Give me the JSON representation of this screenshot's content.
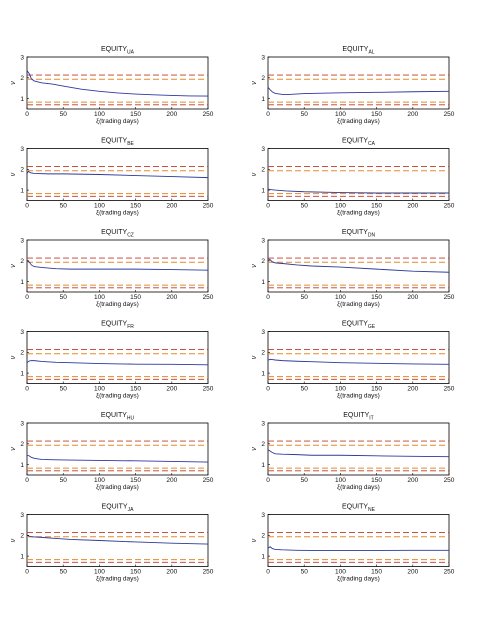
{
  "colors": {
    "series": "#2b3a9c",
    "upper": "#c0392b",
    "lower": "#e38a2a",
    "axis": "#000000"
  },
  "chart_data": [
    {
      "type": "line",
      "title": "EQUITY",
      "title_sub": "UA",
      "xlabel": "ξ(trading days)",
      "ylabel": "ν",
      "xlim": [
        0,
        250
      ],
      "ylim": [
        0.5,
        3
      ],
      "xticks": [
        0,
        50,
        100,
        150,
        200,
        250
      ],
      "yticks": [
        1,
        2,
        3
      ],
      "bands": {
        "upper": [
          2.13,
          1.93
        ],
        "lower": [
          0.83,
          0.7
        ]
      },
      "series": [
        {
          "x": [
            0,
            3,
            6,
            10,
            20,
            35,
            50,
            75,
            100,
            125,
            150,
            175,
            200,
            225,
            250
          ],
          "y": [
            2.35,
            2.2,
            1.95,
            1.85,
            1.76,
            1.7,
            1.6,
            1.45,
            1.35,
            1.27,
            1.22,
            1.18,
            1.15,
            1.13,
            1.12
          ]
        }
      ]
    },
    {
      "type": "line",
      "title": "EQUITY",
      "title_sub": "AL",
      "xlabel": "ξ(trading days)",
      "ylabel": "ν",
      "xlim": [
        0,
        250
      ],
      "ylim": [
        0.5,
        3
      ],
      "xticks": [
        0,
        50,
        100,
        150,
        200,
        250
      ],
      "yticks": [
        1,
        2,
        3
      ],
      "bands": {
        "upper": [
          2.13,
          1.93
        ],
        "lower": [
          0.83,
          0.7
        ]
      },
      "series": [
        {
          "x": [
            0,
            3,
            6,
            10,
            20,
            30,
            50,
            100,
            150,
            200,
            250
          ],
          "y": [
            1.55,
            1.42,
            1.32,
            1.25,
            1.2,
            1.2,
            1.24,
            1.28,
            1.3,
            1.33,
            1.35
          ]
        }
      ]
    },
    {
      "type": "line",
      "title": "EQUITY",
      "title_sub": "BE",
      "xlabel": "ξ(trading days)",
      "ylabel": "ν",
      "xlim": [
        0,
        250
      ],
      "ylim": [
        0.5,
        3
      ],
      "xticks": [
        0,
        50,
        100,
        150,
        200,
        250
      ],
      "yticks": [
        1,
        2,
        3
      ],
      "bands": {
        "upper": [
          2.13,
          1.93
        ],
        "lower": [
          0.83,
          0.7
        ]
      },
      "series": [
        {
          "x": [
            0,
            2,
            5,
            10,
            30,
            50,
            100,
            150,
            200,
            250
          ],
          "y": [
            1.8,
            1.9,
            1.83,
            1.8,
            1.78,
            1.78,
            1.75,
            1.7,
            1.65,
            1.6
          ]
        }
      ]
    },
    {
      "type": "line",
      "title": "EQUITY",
      "title_sub": "CA",
      "xlabel": "ξ(trading days)",
      "ylabel": "ν",
      "xlim": [
        0,
        250
      ],
      "ylim": [
        0.5,
        3
      ],
      "xticks": [
        0,
        50,
        100,
        150,
        200,
        250
      ],
      "yticks": [
        1,
        2,
        3
      ],
      "bands": {
        "upper": [
          2.13,
          1.93
        ],
        "lower": [
          0.83,
          0.7
        ]
      },
      "series": [
        {
          "x": [
            0,
            5,
            10,
            25,
            50,
            100,
            150,
            200,
            250
          ],
          "y": [
            1.05,
            1.02,
            1.0,
            0.96,
            0.92,
            0.88,
            0.86,
            0.86,
            0.86
          ]
        }
      ]
    },
    {
      "type": "line",
      "title": "EQUITY",
      "title_sub": "CZ",
      "xlabel": "ξ(trading days)",
      "ylabel": "ν",
      "xlim": [
        0,
        250
      ],
      "ylim": [
        0.5,
        3
      ],
      "xticks": [
        0,
        50,
        100,
        150,
        200,
        250
      ],
      "yticks": [
        1,
        2,
        3
      ],
      "bands": {
        "upper": [
          2.13,
          1.93
        ],
        "lower": [
          0.83,
          0.7
        ]
      },
      "series": [
        {
          "x": [
            0,
            3,
            6,
            10,
            20,
            40,
            60,
            100,
            150,
            200,
            250
          ],
          "y": [
            2.0,
            1.95,
            1.8,
            1.72,
            1.68,
            1.62,
            1.6,
            1.6,
            1.6,
            1.58,
            1.55
          ]
        }
      ]
    },
    {
      "type": "line",
      "title": "EQUITY",
      "title_sub": "DN",
      "xlabel": "ξ(trading days)",
      "ylabel": "ν",
      "xlim": [
        0,
        250
      ],
      "ylim": [
        0.5,
        3
      ],
      "xticks": [
        0,
        50,
        100,
        150,
        200,
        250
      ],
      "yticks": [
        1,
        2,
        3
      ],
      "bands": {
        "upper": [
          2.13,
          1.93
        ],
        "lower": [
          0.83,
          0.7
        ]
      },
      "series": [
        {
          "x": [
            0,
            3,
            6,
            10,
            20,
            40,
            60,
            100,
            150,
            200,
            250
          ],
          "y": [
            2.1,
            2.05,
            1.95,
            1.9,
            1.87,
            1.8,
            1.75,
            1.7,
            1.6,
            1.5,
            1.45
          ]
        }
      ]
    },
    {
      "type": "line",
      "title": "EQUITY",
      "title_sub": "FR",
      "xlabel": "ξ(trading days)",
      "ylabel": "ν",
      "xlim": [
        0,
        250
      ],
      "ylim": [
        0.5,
        3
      ],
      "xticks": [
        0,
        50,
        100,
        150,
        200,
        250
      ],
      "yticks": [
        1,
        2,
        3
      ],
      "bands": {
        "upper": [
          2.13,
          1.93
        ],
        "lower": [
          0.83,
          0.7
        ]
      },
      "series": [
        {
          "x": [
            0,
            3,
            6,
            10,
            20,
            40,
            60,
            100,
            150,
            200,
            250
          ],
          "y": [
            1.5,
            1.58,
            1.6,
            1.6,
            1.56,
            1.52,
            1.5,
            1.46,
            1.43,
            1.42,
            1.4
          ]
        }
      ]
    },
    {
      "type": "line",
      "title": "EQUITY",
      "title_sub": "GE",
      "xlabel": "ξ(trading days)",
      "ylabel": "ν",
      "xlim": [
        0,
        250
      ],
      "ylim": [
        0.5,
        3
      ],
      "xticks": [
        0,
        50,
        100,
        150,
        200,
        250
      ],
      "yticks": [
        1,
        2,
        3
      ],
      "bands": {
        "upper": [
          2.13,
          1.93
        ],
        "lower": [
          0.83,
          0.7
        ]
      },
      "series": [
        {
          "x": [
            0,
            3,
            6,
            10,
            20,
            40,
            60,
            100,
            150,
            200,
            250
          ],
          "y": [
            1.62,
            1.66,
            1.65,
            1.63,
            1.6,
            1.57,
            1.55,
            1.5,
            1.47,
            1.44,
            1.42
          ]
        }
      ]
    },
    {
      "type": "line",
      "title": "EQUITY",
      "title_sub": "HU",
      "xlabel": "ξ(trading days)",
      "ylabel": "ν",
      "xlim": [
        0,
        250
      ],
      "ylim": [
        0.5,
        3
      ],
      "xticks": [
        0,
        50,
        100,
        150,
        200,
        250
      ],
      "yticks": [
        1,
        2,
        3
      ],
      "bands": {
        "upper": [
          2.13,
          1.93
        ],
        "lower": [
          0.83,
          0.7
        ]
      },
      "series": [
        {
          "x": [
            0,
            3,
            6,
            10,
            20,
            40,
            60,
            100,
            150,
            200,
            250
          ],
          "y": [
            1.45,
            1.42,
            1.35,
            1.3,
            1.25,
            1.23,
            1.22,
            1.2,
            1.18,
            1.15,
            1.12
          ]
        }
      ]
    },
    {
      "type": "line",
      "title": "EQUITY",
      "title_sub": "IT",
      "xlabel": "ξ(trading days)",
      "ylabel": "ν",
      "xlim": [
        0,
        250
      ],
      "ylim": [
        0.5,
        3
      ],
      "xticks": [
        0,
        50,
        100,
        150,
        200,
        250
      ],
      "yticks": [
        1,
        2,
        3
      ],
      "bands": {
        "upper": [
          2.13,
          1.93
        ],
        "lower": [
          0.83,
          0.7
        ]
      },
      "series": [
        {
          "x": [
            0,
            3,
            6,
            10,
            20,
            40,
            60,
            100,
            150,
            200,
            250
          ],
          "y": [
            1.72,
            1.65,
            1.58,
            1.52,
            1.5,
            1.48,
            1.45,
            1.45,
            1.42,
            1.4,
            1.38
          ]
        }
      ]
    },
    {
      "type": "line",
      "title": "EQUITY",
      "title_sub": "JA",
      "xlabel": "ξ(trading days)",
      "ylabel": "ν",
      "xlim": [
        0,
        250
      ],
      "ylim": [
        0.5,
        3
      ],
      "xticks": [
        0,
        50,
        100,
        150,
        200,
        250
      ],
      "yticks": [
        1,
        2,
        3
      ],
      "bands": {
        "upper": [
          2.13,
          1.93
        ],
        "lower": [
          0.83,
          0.7
        ]
      },
      "series": [
        {
          "x": [
            0,
            3,
            6,
            10,
            20,
            40,
            60,
            100,
            150,
            200,
            250
          ],
          "y": [
            2.0,
            1.96,
            1.93,
            1.92,
            1.9,
            1.85,
            1.8,
            1.75,
            1.68,
            1.62,
            1.58
          ]
        }
      ]
    },
    {
      "type": "line",
      "title": "EQUITY",
      "title_sub": "NE",
      "xlabel": "ξ(trading days)",
      "ylabel": "ν",
      "xlim": [
        0,
        250
      ],
      "ylim": [
        0.5,
        3
      ],
      "xticks": [
        0,
        50,
        100,
        150,
        200,
        250
      ],
      "yticks": [
        1,
        2,
        3
      ],
      "bands": {
        "upper": [
          2.13,
          1.93
        ],
        "lower": [
          0.83,
          0.7
        ]
      },
      "series": [
        {
          "x": [
            0,
            3,
            6,
            10,
            20,
            40,
            60,
            100,
            150,
            200,
            250
          ],
          "y": [
            1.38,
            1.45,
            1.36,
            1.32,
            1.3,
            1.28,
            1.27,
            1.27,
            1.27,
            1.28,
            1.28
          ]
        }
      ]
    }
  ]
}
